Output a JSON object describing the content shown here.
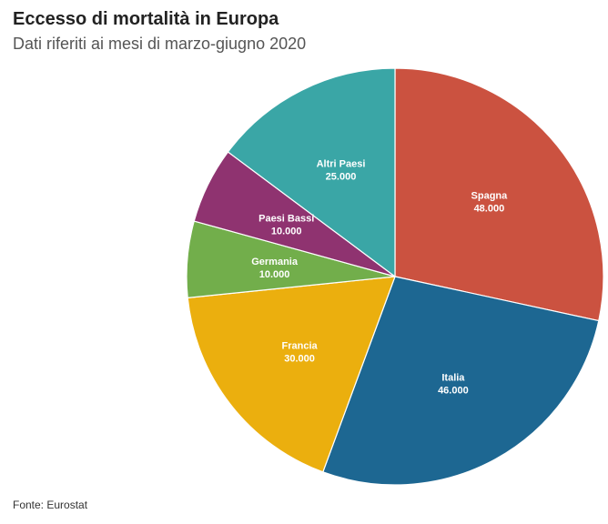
{
  "chart_data": {
    "type": "pie",
    "title": "Eccesso di mortalità in Europa",
    "subtitle": "Dati riferiti ai mesi di marzo-giugno 2020",
    "source": "Fonte: Eurostat",
    "start": "12 o'clock",
    "direction": "clockwise",
    "slices": [
      {
        "name": "Spagna",
        "value": 48000,
        "value_label": "48.000",
        "color": "#cb5240"
      },
      {
        "name": "Italia",
        "value": 46000,
        "value_label": "46.000",
        "color": "#1d6792"
      },
      {
        "name": "Francia",
        "value": 30000,
        "value_label": "30.000",
        "color": "#ebaf0e"
      },
      {
        "name": "Germania",
        "value": 10000,
        "value_label": "10.000",
        "color": "#72ae4b"
      },
      {
        "name": "Paesi Bassi",
        "value": 10000,
        "value_label": "10.000",
        "color": "#8f3370"
      },
      {
        "name": "Altri Paesi",
        "value": 25000,
        "value_label": "25.000",
        "color": "#3aa6a6"
      }
    ]
  }
}
